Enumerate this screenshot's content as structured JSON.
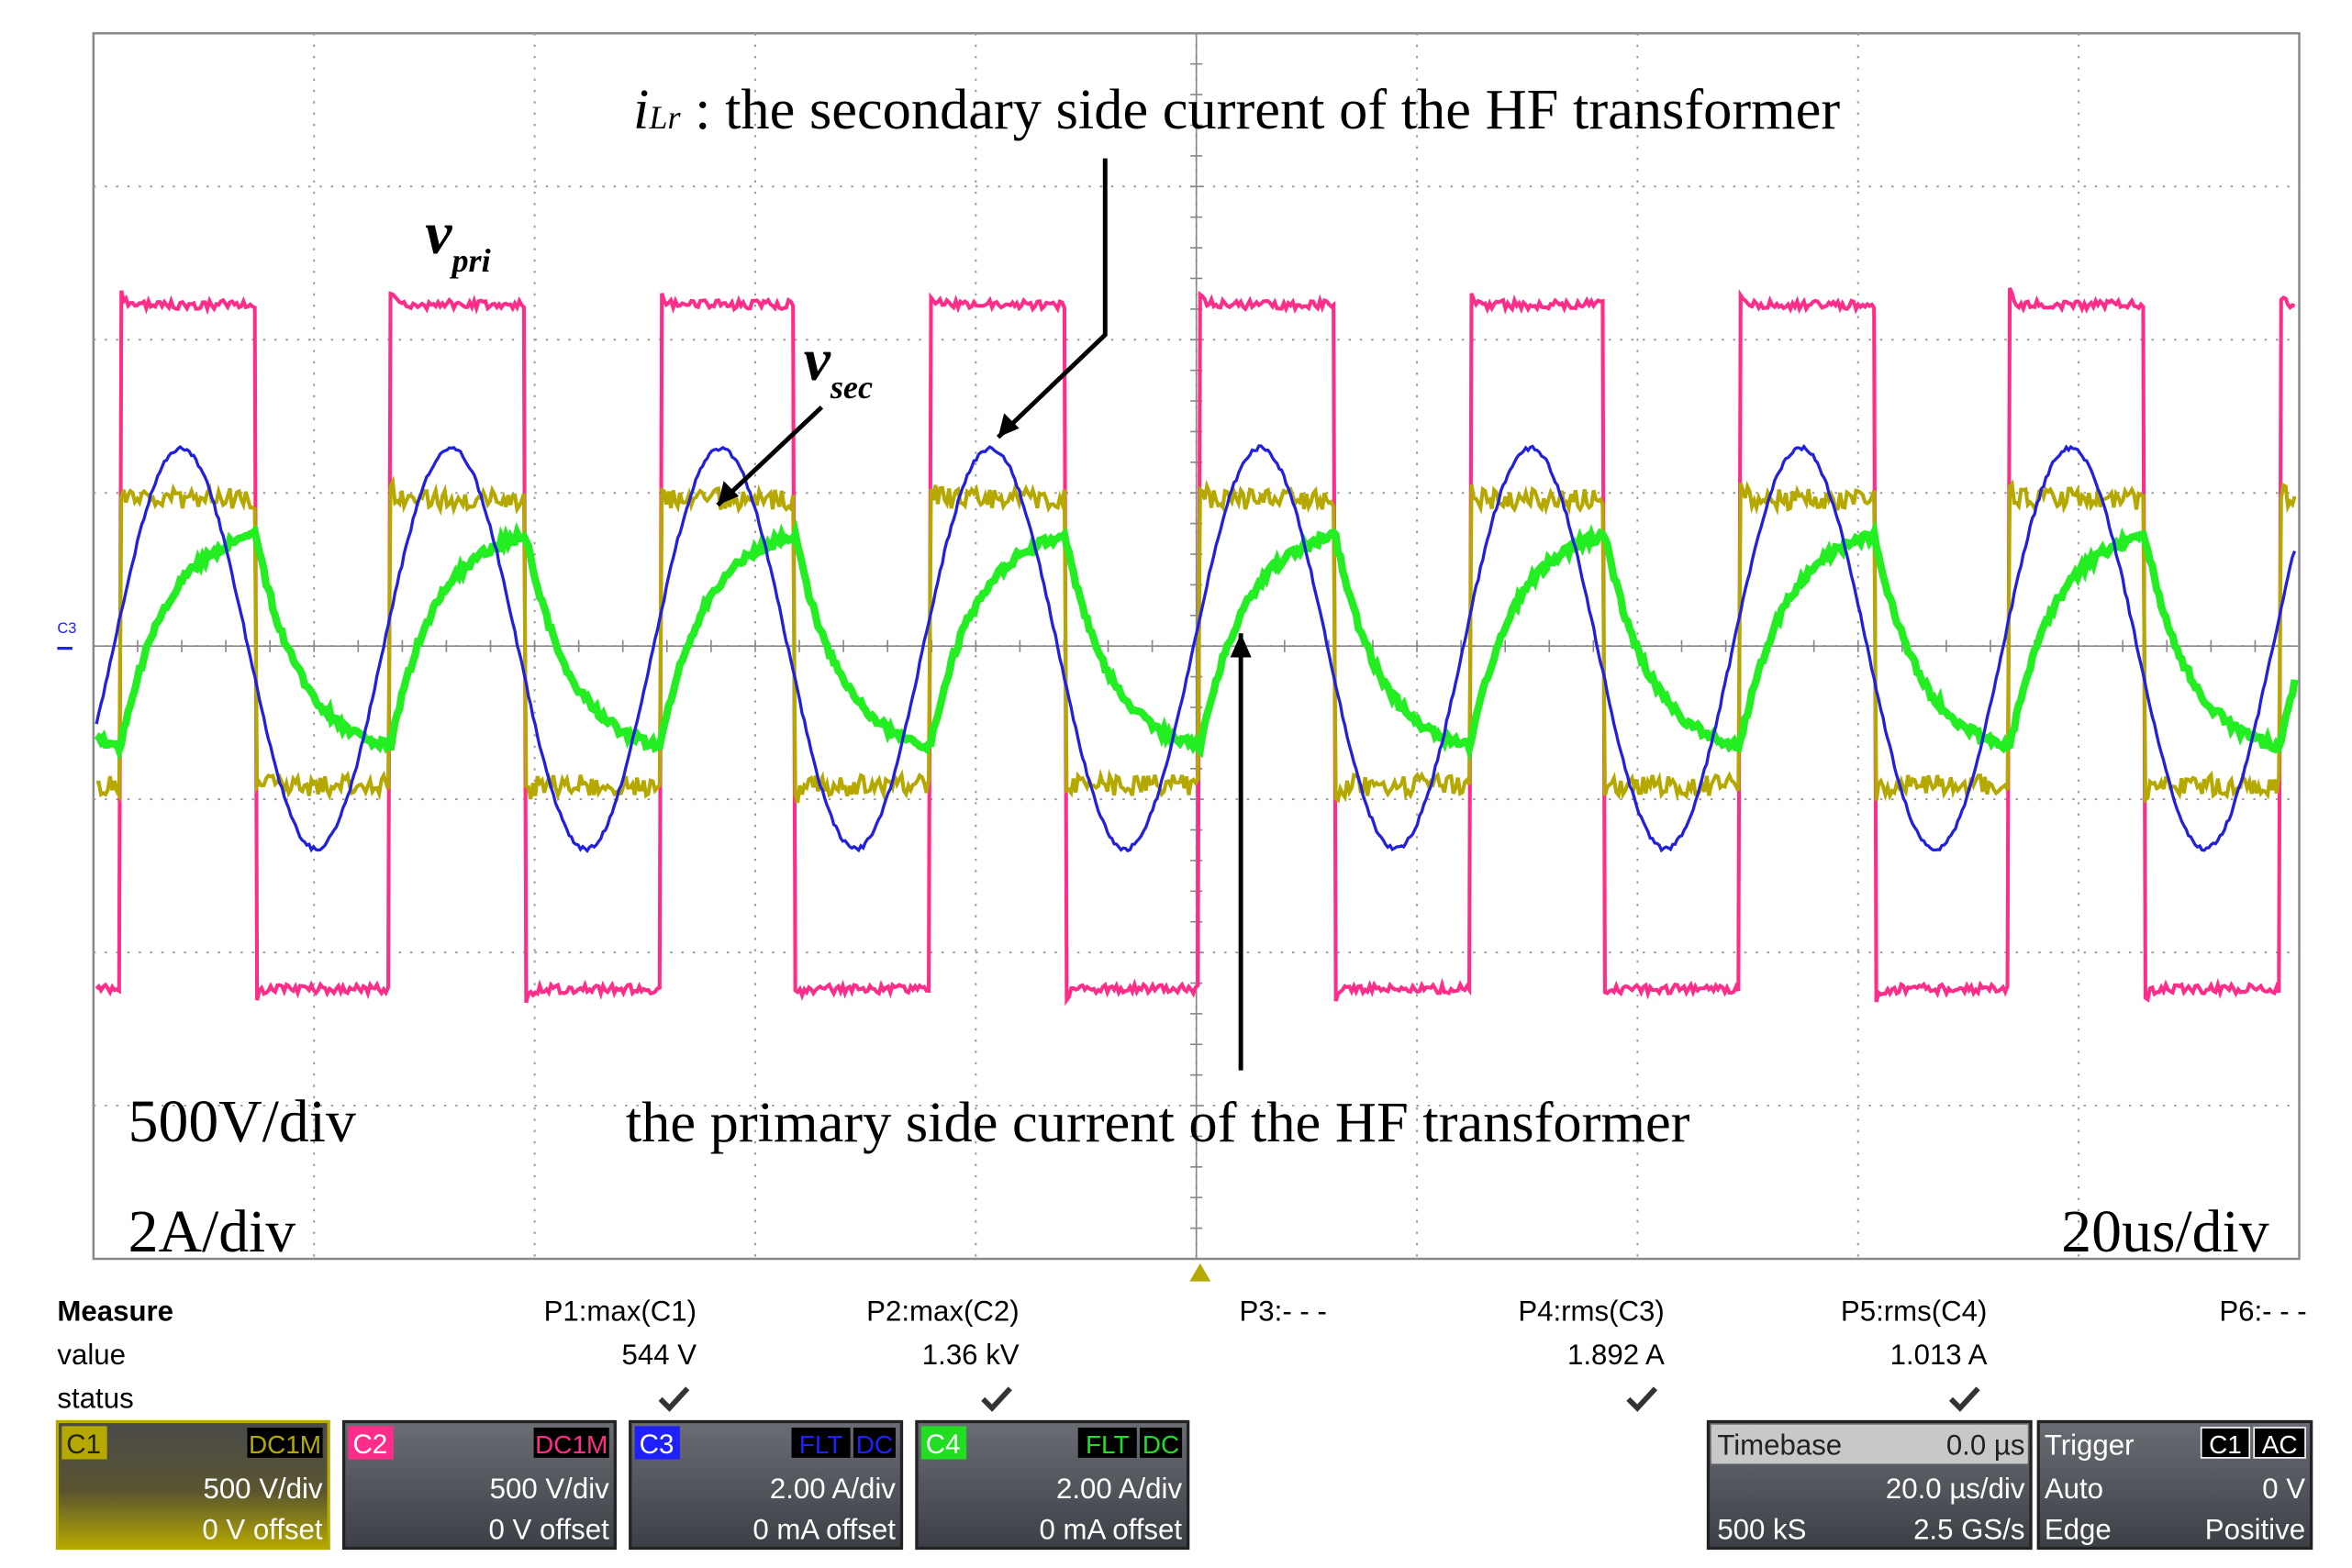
{
  "annotations": {
    "ilr": {
      "symbol": "i",
      "subscript": "Lr",
      "text": " : the secondary side current of the HF transformer"
    },
    "vpri": {
      "symbol": "v",
      "subscript": "pri"
    },
    "vsec": {
      "symbol": "v",
      "subscript": "sec"
    },
    "primary": "the primary side current of the HF transformer",
    "volt_scale": "500V/div",
    "current_scale": "2A/div",
    "time_scale": "20us/div",
    "marker": "C3"
  },
  "measure": {
    "title": "Measure",
    "row_labels": [
      "value",
      "status"
    ],
    "items": [
      {
        "name": "P1:max(C1)",
        "value": "544 V"
      },
      {
        "name": "P2:max(C2)",
        "value": "1.36 kV"
      },
      {
        "name": "P3:- - -"
      },
      {
        "name": "P4:rms(C3)",
        "value": "1.892 A"
      },
      {
        "name": "P5:rms(C4)",
        "value": "1.013 A"
      },
      {
        "name": "P6:- - -"
      }
    ]
  },
  "channels": [
    {
      "label": "C1",
      "coupling": [
        "DC1M"
      ],
      "scale": "500 V/div",
      "offset": "0 V offset",
      "color": "#b5a800"
    },
    {
      "label": "C2",
      "coupling": [
        "DC1M"
      ],
      "scale": "500 V/div",
      "offset": "0 V offset",
      "color": "#ff2d8a"
    },
    {
      "label": "C3",
      "coupling": [
        "FLT",
        "DC"
      ],
      "scale": "2.00 A/div",
      "offset": "0 mA offset",
      "color": "#2020ff"
    },
    {
      "label": "C4",
      "coupling": [
        "FLT",
        "DC"
      ],
      "scale": "2.00 A/div",
      "offset": "0 mA offset",
      "color": "#22dd22"
    }
  ],
  "timebase": {
    "title": "Timebase",
    "delay": "0.0 µs",
    "scale": "20.0 µs/div",
    "memory": "500 kS",
    "rate": "2.5 GS/s"
  },
  "trigger": {
    "title": "Trigger",
    "source": "C1",
    "coupling": "AC",
    "mode": "Auto",
    "level": "0 V",
    "type": "Edge",
    "slope": "Positive"
  }
}
